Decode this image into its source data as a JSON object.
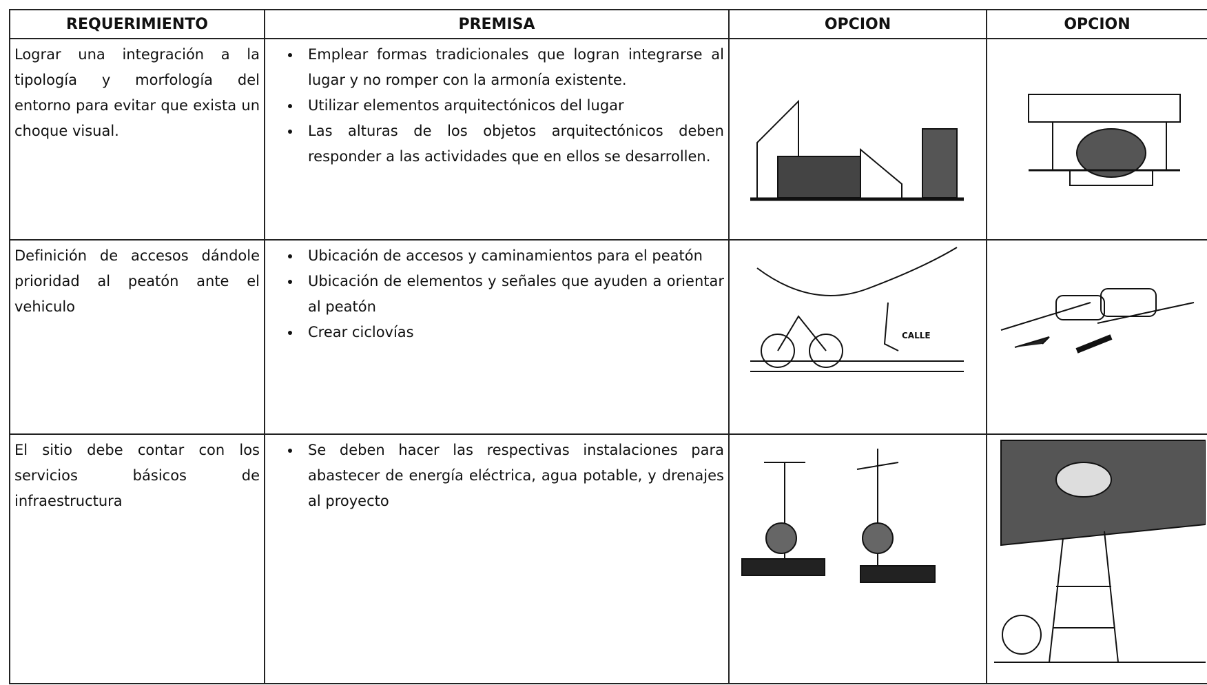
{
  "table": {
    "headers": [
      "REQUERIMIENTO",
      "PREMISA",
      "OPCION",
      "OPCION"
    ],
    "rows": [
      {
        "requirement": "Lograr una integración a la tipología y morfología del entorno para evitar que exista un choque visual.",
        "premises": [
          "Emplear formas tradicionales que logran integrarse al lugar y no romper con la armonía existente.",
          "Utilizar elementos arquitectónicos del lugar",
          "Las alturas de los objetos arquitectónicos deben responder a las actividades que en ellos se desarrollen."
        ]
      },
      {
        "requirement": "Definición de accesos dándole prioridad al peatón ante el vehiculo",
        "premises": [
          "Ubicación de accesos y caminamientos para el peatón",
          "Ubicación de elementos y señales que ayuden a orientar al peatón",
          "Crear ciclovías"
        ]
      },
      {
        "requirement": "El sitio debe contar con los servicios básicos de infraestructura",
        "premises": [
          "Se deben hacer las respectivas instalaciones para abastecer de energía eléctrica, agua potable, y drenajes al proyecto"
        ]
      }
    ]
  },
  "illustration_labels": {
    "street": "CALLE"
  }
}
